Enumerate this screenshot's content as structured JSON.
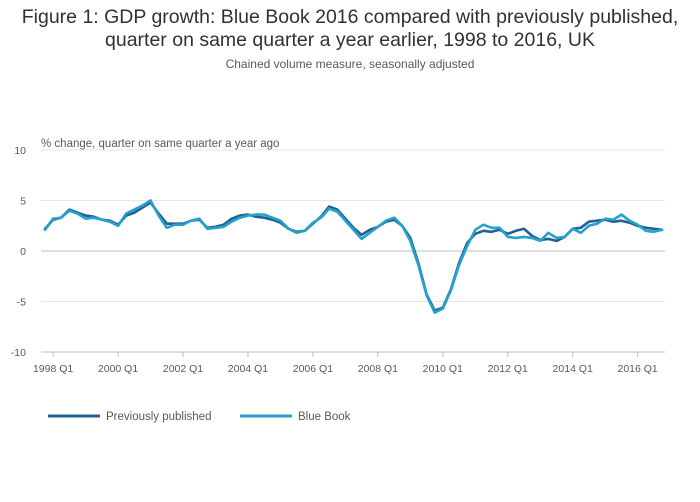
{
  "chart_data": {
    "type": "line",
    "title_line1": "Figure 1: GDP growth: Blue Book 2016 compared with previously published,",
    "title_line2": "quarter on same quarter a year earlier, 1998 to 2016, UK",
    "subtitle": "Chained volume measure, seasonally adjusted",
    "ylabel": "% change, quarter on same quarter a year ago",
    "xlabel": "",
    "ylim": [
      -10,
      10
    ],
    "yticks": [
      "10",
      "5",
      "0",
      "-5",
      "-10"
    ],
    "ytick_values": [
      10,
      5,
      0,
      -5,
      -10
    ],
    "x_start": "1997 Q4",
    "xticks": [
      {
        "label": "1998 Q1",
        "index": 1
      },
      {
        "label": "2000 Q1",
        "index": 9
      },
      {
        "label": "2002 Q1",
        "index": 17
      },
      {
        "label": "2004 Q1",
        "index": 25
      },
      {
        "label": "2006 Q1",
        "index": 33
      },
      {
        "label": "2008 Q1",
        "index": 41
      },
      {
        "label": "2010 Q1",
        "index": 49
      },
      {
        "label": "2012 Q1",
        "index": 57
      },
      {
        "label": "2014 Q1",
        "index": 65
      },
      {
        "label": "2016 Q1",
        "index": 73
      }
    ],
    "series": [
      {
        "name": "Previously published",
        "color": "#206095",
        "values": [
          2.2,
          3.1,
          3.3,
          4.1,
          3.8,
          3.5,
          3.4,
          3.1,
          3.0,
          2.6,
          3.5,
          3.8,
          4.3,
          4.8,
          3.7,
          2.7,
          2.7,
          2.7,
          3.0,
          3.1,
          2.3,
          2.4,
          2.6,
          3.2,
          3.5,
          3.6,
          3.4,
          3.3,
          3.1,
          2.8,
          2.2,
          1.9,
          2.0,
          2.7,
          3.4,
          4.4,
          4.1,
          3.2,
          2.3,
          1.6,
          2.1,
          2.4,
          2.9,
          3.1,
          2.5,
          1.3,
          -1.2,
          -4.3,
          -5.9,
          -5.6,
          -3.8,
          -1.2,
          0.8,
          1.7,
          2.0,
          1.9,
          2.1,
          1.7,
          2.0,
          2.2,
          1.5,
          1.1,
          1.2,
          1.0,
          1.4,
          2.2,
          2.3,
          2.9,
          3.0,
          3.1,
          2.9,
          3.0,
          2.8,
          2.5,
          2.3,
          2.2,
          2.1
        ]
      },
      {
        "name": "Blue Book",
        "color": "#27a0cc",
        "values": [
          2.1,
          3.2,
          3.3,
          4.0,
          3.7,
          3.2,
          3.3,
          3.1,
          2.9,
          2.5,
          3.7,
          4.1,
          4.5,
          5.0,
          3.5,
          2.3,
          2.6,
          2.6,
          3.0,
          3.2,
          2.2,
          2.3,
          2.4,
          2.9,
          3.3,
          3.5,
          3.6,
          3.6,
          3.3,
          3.0,
          2.2,
          1.8,
          2.0,
          2.8,
          3.3,
          4.2,
          3.9,
          3.0,
          2.1,
          1.2,
          1.8,
          2.4,
          3.0,
          3.3,
          2.5,
          1.0,
          -1.4,
          -4.4,
          -6.1,
          -5.7,
          -3.9,
          -1.4,
          0.5,
          2.1,
          2.6,
          2.3,
          2.3,
          1.4,
          1.3,
          1.4,
          1.3,
          1.0,
          1.8,
          1.3,
          1.4,
          2.2,
          1.8,
          2.5,
          2.7,
          3.2,
          3.1,
          3.6,
          3.0,
          2.6,
          2.0,
          1.9,
          2.1
        ]
      }
    ],
    "legend": [
      "Previously published",
      "Blue Book"
    ],
    "legend_position": "bottom-left",
    "grid": true
  }
}
